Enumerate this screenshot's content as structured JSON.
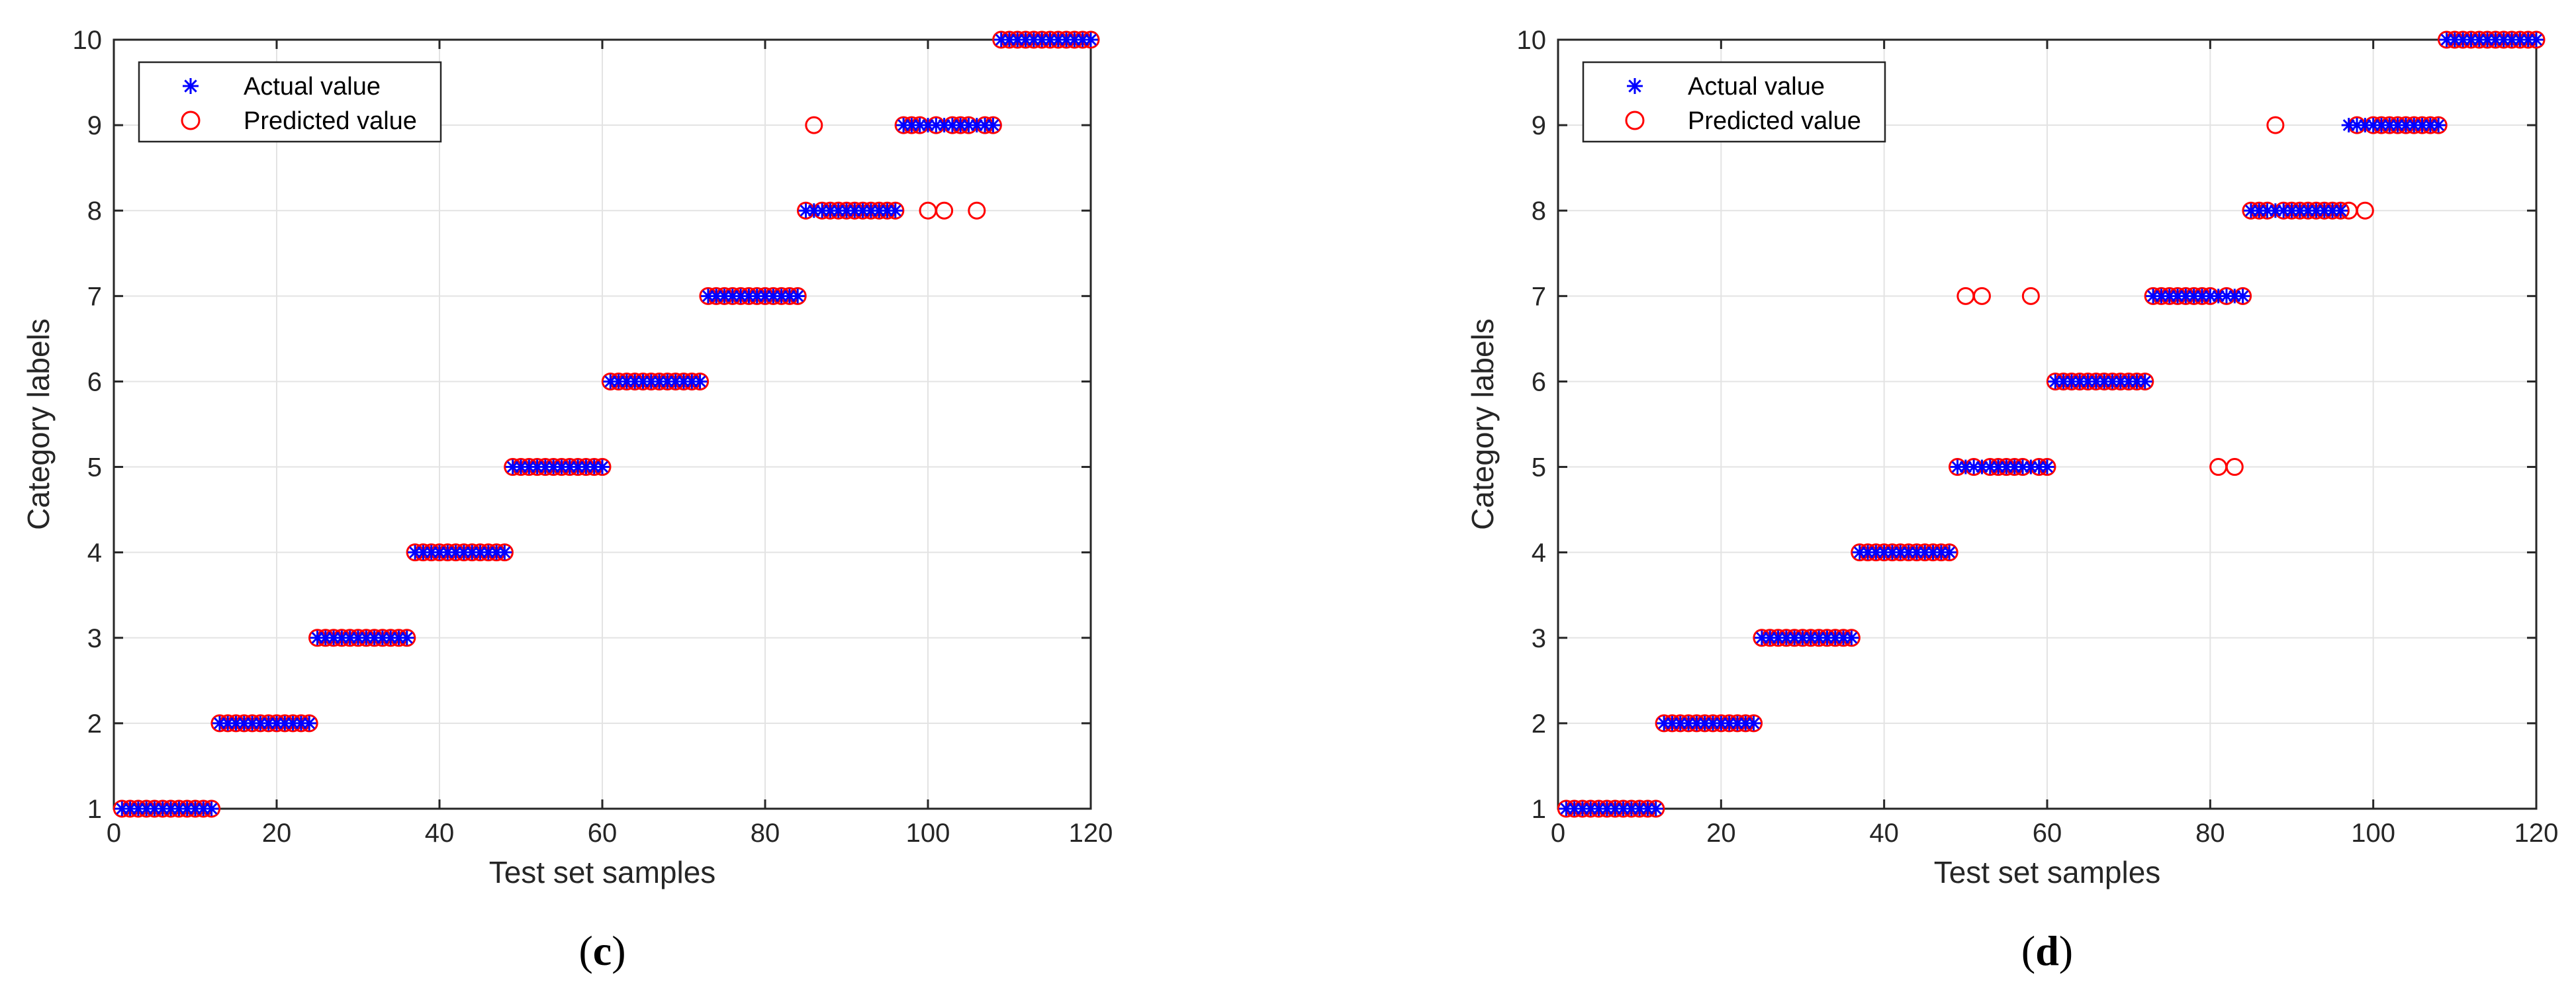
{
  "chart_data": [
    {
      "type": "scatter",
      "panel": "c",
      "xlabel": "Test set samples",
      "ylabel": "Category labels",
      "xlim": [
        0,
        120
      ],
      "ylim": [
        1,
        10
      ],
      "xticks": [
        0,
        20,
        40,
        60,
        80,
        100,
        120
      ],
      "yticks": [
        1,
        2,
        3,
        4,
        5,
        6,
        7,
        8,
        9,
        10
      ],
      "grid": true,
      "legend_position": "top-left",
      "legend": [
        "Actual value",
        "Predicted value"
      ],
      "series": [
        {
          "name": "Actual value",
          "marker": "asterisk",
          "color": "#0000ff",
          "x": [
            1,
            2,
            3,
            4,
            5,
            6,
            7,
            8,
            9,
            10,
            11,
            12,
            13,
            14,
            15,
            16,
            17,
            18,
            19,
            20,
            21,
            22,
            23,
            24,
            25,
            26,
            27,
            28,
            29,
            30,
            31,
            32,
            33,
            34,
            35,
            36,
            37,
            38,
            39,
            40,
            41,
            42,
            43,
            44,
            45,
            46,
            47,
            48,
            49,
            50,
            51,
            52,
            53,
            54,
            55,
            56,
            57,
            58,
            59,
            60,
            61,
            62,
            63,
            64,
            65,
            66,
            67,
            68,
            69,
            70,
            71,
            72,
            73,
            74,
            75,
            76,
            77,
            78,
            79,
            80,
            81,
            82,
            83,
            84,
            85,
            86,
            87,
            88,
            89,
            90,
            91,
            92,
            93,
            94,
            95,
            96,
            97,
            98,
            99,
            100,
            101,
            102,
            103,
            104,
            105,
            106,
            107,
            108,
            109,
            110,
            111,
            112,
            113,
            114,
            115,
            116,
            117,
            118,
            119,
            120
          ],
          "y": [
            1,
            1,
            1,
            1,
            1,
            1,
            1,
            1,
            1,
            1,
            1,
            1,
            2,
            2,
            2,
            2,
            2,
            2,
            2,
            2,
            2,
            2,
            2,
            2,
            3,
            3,
            3,
            3,
            3,
            3,
            3,
            3,
            3,
            3,
            3,
            3,
            4,
            4,
            4,
            4,
            4,
            4,
            4,
            4,
            4,
            4,
            4,
            4,
            5,
            5,
            5,
            5,
            5,
            5,
            5,
            5,
            5,
            5,
            5,
            5,
            6,
            6,
            6,
            6,
            6,
            6,
            6,
            6,
            6,
            6,
            6,
            6,
            7,
            7,
            7,
            7,
            7,
            7,
            7,
            7,
            7,
            7,
            7,
            7,
            8,
            8,
            8,
            8,
            8,
            8,
            8,
            8,
            8,
            8,
            8,
            8,
            9,
            9,
            9,
            9,
            9,
            9,
            9,
            9,
            9,
            9,
            9,
            9,
            10,
            10,
            10,
            10,
            10,
            10,
            10,
            10,
            10,
            10,
            10,
            10
          ]
        },
        {
          "name": "Predicted value",
          "marker": "circle",
          "color": "#ff0000",
          "x": [
            1,
            2,
            3,
            4,
            5,
            6,
            7,
            8,
            9,
            10,
            11,
            12,
            13,
            14,
            15,
            16,
            17,
            18,
            19,
            20,
            21,
            22,
            23,
            24,
            25,
            26,
            27,
            28,
            29,
            30,
            31,
            32,
            33,
            34,
            35,
            36,
            37,
            38,
            39,
            40,
            41,
            42,
            43,
            44,
            45,
            46,
            47,
            48,
            49,
            50,
            51,
            52,
            53,
            54,
            55,
            56,
            57,
            58,
            59,
            60,
            61,
            62,
            63,
            64,
            65,
            66,
            67,
            68,
            69,
            70,
            71,
            72,
            73,
            74,
            75,
            76,
            77,
            78,
            79,
            80,
            81,
            82,
            83,
            84,
            85,
            86,
            87,
            88,
            89,
            90,
            91,
            92,
            93,
            94,
            95,
            96,
            97,
            98,
            99,
            100,
            101,
            102,
            103,
            104,
            105,
            106,
            107,
            108,
            109,
            110,
            111,
            112,
            113,
            114,
            115,
            116,
            117,
            118,
            119,
            120
          ],
          "y": [
            1,
            1,
            1,
            1,
            1,
            1,
            1,
            1,
            1,
            1,
            1,
            1,
            2,
            2,
            2,
            2,
            2,
            2,
            2,
            2,
            2,
            2,
            2,
            2,
            3,
            3,
            3,
            3,
            3,
            3,
            3,
            3,
            3,
            3,
            3,
            3,
            4,
            4,
            4,
            4,
            4,
            4,
            4,
            4,
            4,
            4,
            4,
            4,
            5,
            5,
            5,
            5,
            5,
            5,
            5,
            5,
            5,
            5,
            5,
            5,
            6,
            6,
            6,
            6,
            6,
            6,
            6,
            6,
            6,
            6,
            6,
            6,
            7,
            7,
            7,
            7,
            7,
            7,
            7,
            7,
            7,
            7,
            7,
            7,
            8,
            9,
            8,
            8,
            8,
            8,
            8,
            8,
            8,
            8,
            8,
            8,
            9,
            9,
            9,
            8,
            9,
            8,
            9,
            9,
            9,
            8,
            9,
            9,
            10,
            10,
            10,
            10,
            10,
            10,
            10,
            10,
            10,
            10,
            10,
            10
          ]
        }
      ]
    },
    {
      "type": "scatter",
      "panel": "d",
      "xlabel": "Test set samples",
      "ylabel": "Category labels",
      "xlim": [
        0,
        120
      ],
      "ylim": [
        1,
        10
      ],
      "xticks": [
        0,
        20,
        40,
        60,
        80,
        100,
        120
      ],
      "yticks": [
        1,
        2,
        3,
        4,
        5,
        6,
        7,
        8,
        9,
        10
      ],
      "grid": true,
      "legend_position": "top-left",
      "legend": [
        "Actual value",
        "Predicted value"
      ],
      "series": [
        {
          "name": "Actual value",
          "marker": "asterisk",
          "color": "#0000ff",
          "x": [
            1,
            2,
            3,
            4,
            5,
            6,
            7,
            8,
            9,
            10,
            11,
            12,
            13,
            14,
            15,
            16,
            17,
            18,
            19,
            20,
            21,
            22,
            23,
            24,
            25,
            26,
            27,
            28,
            29,
            30,
            31,
            32,
            33,
            34,
            35,
            36,
            37,
            38,
            39,
            40,
            41,
            42,
            43,
            44,
            45,
            46,
            47,
            48,
            49,
            50,
            51,
            52,
            53,
            54,
            55,
            56,
            57,
            58,
            59,
            60,
            61,
            62,
            63,
            64,
            65,
            66,
            67,
            68,
            69,
            70,
            71,
            72,
            73,
            74,
            75,
            76,
            77,
            78,
            79,
            80,
            81,
            82,
            83,
            84,
            85,
            86,
            87,
            88,
            89,
            90,
            91,
            92,
            93,
            94,
            95,
            96,
            97,
            98,
            99,
            100,
            101,
            102,
            103,
            104,
            105,
            106,
            107,
            108,
            109,
            110,
            111,
            112,
            113,
            114,
            115,
            116,
            117,
            118,
            119,
            120
          ],
          "y": [
            1,
            1,
            1,
            1,
            1,
            1,
            1,
            1,
            1,
            1,
            1,
            1,
            2,
            2,
            2,
            2,
            2,
            2,
            2,
            2,
            2,
            2,
            2,
            2,
            3,
            3,
            3,
            3,
            3,
            3,
            3,
            3,
            3,
            3,
            3,
            3,
            4,
            4,
            4,
            4,
            4,
            4,
            4,
            4,
            4,
            4,
            4,
            4,
            5,
            5,
            5,
            5,
            5,
            5,
            5,
            5,
            5,
            5,
            5,
            5,
            6,
            6,
            6,
            6,
            6,
            6,
            6,
            6,
            6,
            6,
            6,
            6,
            7,
            7,
            7,
            7,
            7,
            7,
            7,
            7,
            7,
            7,
            7,
            7,
            8,
            8,
            8,
            8,
            8,
            8,
            8,
            8,
            8,
            8,
            8,
            8,
            9,
            9,
            9,
            9,
            9,
            9,
            9,
            9,
            9,
            9,
            9,
            9,
            10,
            10,
            10,
            10,
            10,
            10,
            10,
            10,
            10,
            10,
            10,
            10
          ]
        },
        {
          "name": "Predicted value",
          "marker": "circle",
          "color": "#ff0000",
          "x": [
            1,
            2,
            3,
            4,
            5,
            6,
            7,
            8,
            9,
            10,
            11,
            12,
            13,
            14,
            15,
            16,
            17,
            18,
            19,
            20,
            21,
            22,
            23,
            24,
            25,
            26,
            27,
            28,
            29,
            30,
            31,
            32,
            33,
            34,
            35,
            36,
            37,
            38,
            39,
            40,
            41,
            42,
            43,
            44,
            45,
            46,
            47,
            48,
            49,
            50,
            51,
            52,
            53,
            54,
            55,
            56,
            57,
            58,
            59,
            60,
            61,
            62,
            63,
            64,
            65,
            66,
            67,
            68,
            69,
            70,
            71,
            72,
            73,
            74,
            75,
            76,
            77,
            78,
            79,
            80,
            81,
            82,
            83,
            84,
            85,
            86,
            87,
            88,
            89,
            90,
            91,
            92,
            93,
            94,
            95,
            96,
            97,
            98,
            99,
            100,
            101,
            102,
            103,
            104,
            105,
            106,
            107,
            108,
            109,
            110,
            111,
            112,
            113,
            114,
            115,
            116,
            117,
            118,
            119,
            120
          ],
          "y": [
            1,
            1,
            1,
            1,
            1,
            1,
            1,
            1,
            1,
            1,
            1,
            1,
            2,
            2,
            2,
            2,
            2,
            2,
            2,
            2,
            2,
            2,
            2,
            2,
            3,
            3,
            3,
            3,
            3,
            3,
            3,
            3,
            3,
            3,
            3,
            3,
            4,
            4,
            4,
            4,
            4,
            4,
            4,
            4,
            4,
            4,
            4,
            4,
            5,
            7,
            5,
            7,
            5,
            5,
            5,
            5,
            5,
            7,
            5,
            5,
            6,
            6,
            6,
            6,
            6,
            6,
            6,
            6,
            6,
            6,
            6,
            6,
            7,
            7,
            7,
            7,
            7,
            7,
            7,
            7,
            5,
            7,
            5,
            7,
            8,
            8,
            8,
            9,
            8,
            8,
            8,
            8,
            8,
            8,
            8,
            8,
            8,
            9,
            8,
            9,
            9,
            9,
            9,
            9,
            9,
            9,
            9,
            9,
            10,
            10,
            10,
            10,
            10,
            10,
            10,
            10,
            10,
            10,
            10,
            10
          ]
        }
      ]
    }
  ]
}
